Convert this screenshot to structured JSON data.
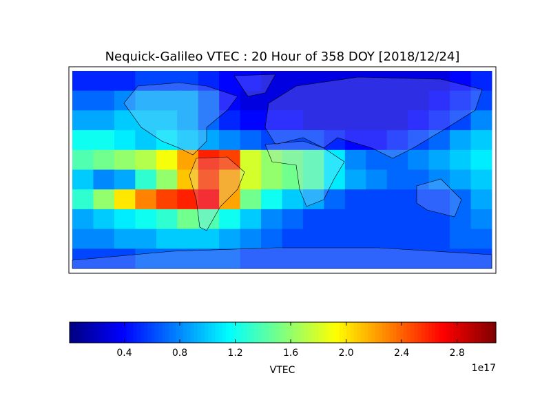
{
  "chart_data": {
    "type": "heatmap",
    "title": "Nequick-Galileo VTEC : 20 Hour of 358 DOY [2018/12/24]",
    "colormap": "jet",
    "colorbar_label": "VTEC",
    "colorbar_offset": "1e17",
    "clim": [
      0.005,
      3.08
    ],
    "cticks": [
      0.4,
      0.8,
      1.2,
      1.6,
      {
        "value": 2,
        "label": "2.0"
      },
      2.4,
      2.8
    ],
    "values": [
      [
        0.5,
        0.5,
        0.5,
        0.6,
        0.6,
        0.6,
        0.5,
        0.4,
        0.4,
        0.3,
        0.3,
        0.3,
        0.3,
        0.3,
        0.3,
        0.3,
        0.3,
        0.3,
        0.4,
        0.5
      ],
      [
        0.7,
        0.7,
        0.8,
        0.9,
        0.9,
        0.9,
        0.7,
        0.4,
        0.3,
        0.3,
        0.3,
        0.3,
        0.3,
        0.3,
        0.3,
        0.3,
        0.3,
        0.4,
        0.5,
        0.6
      ],
      [
        0.9,
        0.9,
        1.0,
        1.0,
        1.0,
        0.9,
        0.7,
        0.5,
        0.4,
        0.4,
        0.4,
        0.3,
        0.3,
        0.3,
        0.3,
        0.3,
        0.4,
        0.5,
        0.6,
        0.8
      ],
      [
        1.2,
        1.2,
        1.1,
        1.0,
        1.1,
        1.0,
        0.9,
        0.8,
        0.7,
        0.6,
        0.6,
        0.6,
        0.5,
        0.4,
        0.4,
        0.5,
        0.6,
        0.7,
        0.9,
        1.0
      ],
      [
        1.4,
        1.5,
        1.6,
        1.7,
        1.9,
        2.2,
        2.6,
        2.5,
        1.8,
        1.6,
        1.5,
        1.4,
        1.1,
        0.8,
        0.7,
        0.7,
        0.8,
        0.9,
        1.0,
        1.1
      ],
      [
        1.0,
        0.8,
        0.9,
        1.3,
        1.6,
        2.1,
        2.5,
        2.2,
        1.8,
        1.6,
        1.5,
        1.4,
        1.1,
        0.9,
        0.8,
        0.7,
        0.7,
        0.8,
        0.9,
        1.0
      ],
      [
        1.3,
        1.6,
        2.0,
        2.3,
        2.5,
        2.6,
        2.7,
        2.2,
        1.5,
        1.2,
        1.0,
        0.9,
        0.7,
        0.6,
        0.6,
        0.6,
        0.6,
        0.6,
        0.7,
        0.9
      ],
      [
        0.9,
        1.0,
        1.1,
        1.2,
        1.3,
        1.5,
        1.4,
        1.2,
        1.0,
        0.8,
        0.7,
        0.6,
        0.6,
        0.6,
        0.6,
        0.6,
        0.6,
        0.6,
        0.7,
        0.8
      ],
      [
        0.8,
        0.8,
        0.9,
        0.9,
        1.0,
        1.0,
        1.0,
        0.9,
        0.8,
        0.7,
        0.6,
        0.6,
        0.6,
        0.6,
        0.6,
        0.6,
        0.6,
        0.6,
        0.7,
        0.7
      ],
      [
        0.6,
        0.6,
        0.6,
        0.7,
        0.7,
        0.7,
        0.7,
        0.7,
        0.6,
        0.6,
        0.6,
        0.6,
        0.6,
        0.6,
        0.6,
        0.6,
        0.6,
        0.6,
        0.6,
        0.6
      ]
    ]
  }
}
